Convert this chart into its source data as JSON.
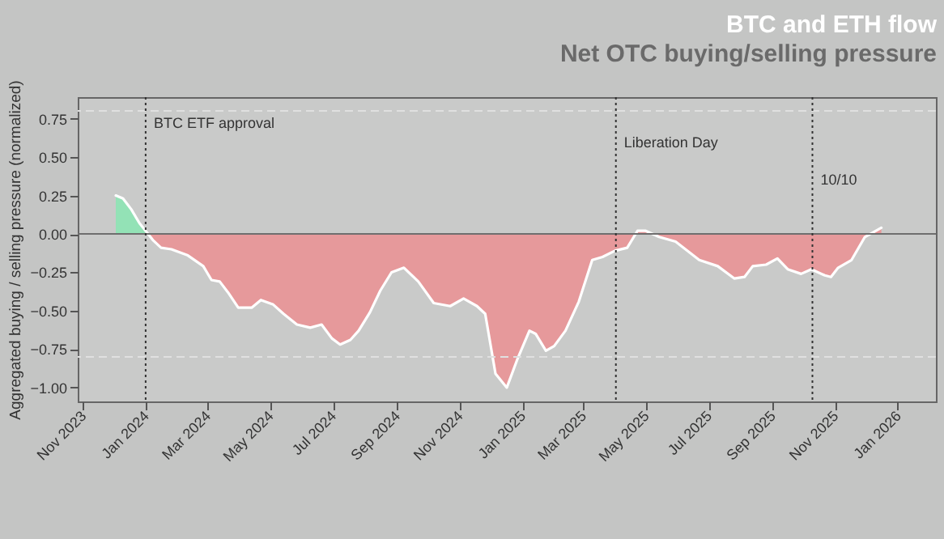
{
  "chart_data": {
    "type": "line",
    "title": "BTC and ETH flow",
    "subtitle": "Net OTC buying/selling pressure",
    "ylabel": "Aggregated buying / selling pressure (normalized)",
    "xlim": [
      "2023-10-27",
      "2026-02-07"
    ],
    "xticks": [
      {
        "value": "2023-11",
        "label": "Nov 2023"
      },
      {
        "value": "2024-01",
        "label": "Jan 2024"
      },
      {
        "value": "2024-03",
        "label": "Mar 2024"
      },
      {
        "value": "2024-05",
        "label": "May 2024"
      },
      {
        "value": "2024-07",
        "label": "Jul 2024"
      },
      {
        "value": "2024-09",
        "label": "Sep 2024"
      },
      {
        "value": "2024-11",
        "label": "Nov 2024"
      },
      {
        "value": "2025-01",
        "label": "Jan 2025"
      },
      {
        "value": "2025-03",
        "label": "Mar 2025"
      },
      {
        "value": "2025-05",
        "label": "May 2025"
      },
      {
        "value": "2025-07",
        "label": "Jul 2025"
      },
      {
        "value": "2025-09",
        "label": "Sep 2025"
      },
      {
        "value": "2025-11",
        "label": "Nov 2025"
      },
      {
        "value": "2026-01",
        "label": "Jan 2026"
      }
    ],
    "ylim": [
      -1.09,
      0.89
    ],
    "yticks": [
      {
        "value": 0.75,
        "label": "0.75"
      },
      {
        "value": 0.5,
        "label": "0.50"
      },
      {
        "value": 0.25,
        "label": "0.25"
      },
      {
        "value": 0,
        "label": "0.00"
      },
      {
        "value": -0.25,
        "label": "−0.25"
      },
      {
        "value": -0.5,
        "label": "−0.50"
      },
      {
        "value": -0.75,
        "label": "−0.75"
      },
      {
        "value": -1,
        "label": "−1.00"
      }
    ],
    "series": [
      {
        "type": "area",
        "color": "#93e2b6",
        "x": [
          "2023-12-03",
          "2023-12-10",
          "2023-12-18",
          "2023-12-26",
          "2024-01-01"
        ],
        "values": [
          0.25,
          0.23,
          0.16,
          0.07,
          0.02
        ]
      },
      {
        "type": "area",
        "color": "#e6999b",
        "x": [
          "2024-01-01",
          "2024-01-08",
          "2024-01-16",
          "2024-01-26",
          "2024-02-11",
          "2024-02-26",
          "2024-03-05",
          "2024-03-13",
          "2024-03-21",
          "2024-03-31",
          "2024-04-13",
          "2024-04-22",
          "2024-05-04",
          "2024-05-14",
          "2024-05-27",
          "2024-06-09",
          "2024-06-20",
          "2024-06-30",
          "2024-07-08",
          "2024-07-18",
          "2024-07-26",
          "2024-08-06",
          "2024-08-16",
          "2024-08-27",
          "2024-09-08",
          "2024-09-22",
          "2024-10-07",
          "2024-10-23",
          "2024-11-05",
          "2024-11-18",
          "2024-11-26",
          "2024-12-06",
          "2024-12-17",
          "2024-12-27",
          "2025-01-08",
          "2025-01-14",
          "2025-01-24",
          "2025-02-01",
          "2025-02-12",
          "2025-02-25",
          "2025-03-10",
          "2025-03-20",
          "2025-04-01",
          "2025-04-13",
          "2025-04-23",
          "2025-05-01",
          "2025-05-14",
          "2025-05-30",
          "2025-06-22",
          "2025-07-10",
          "2025-07-26",
          "2025-08-05",
          "2025-08-13",
          "2025-08-26",
          "2025-09-06",
          "2025-09-16",
          "2025-09-29",
          "2025-10-09",
          "2025-10-22",
          "2025-10-28",
          "2025-11-04",
          "2025-11-17",
          "2025-11-30",
          "2025-12-16"
        ],
        "values": [
          0.02,
          -0.04,
          -0.09,
          -0.1,
          -0.14,
          -0.21,
          -0.3,
          -0.31,
          -0.38,
          -0.48,
          -0.48,
          -0.43,
          -0.46,
          -0.52,
          -0.59,
          -0.61,
          -0.59,
          -0.68,
          -0.72,
          -0.69,
          -0.63,
          -0.51,
          -0.37,
          -0.25,
          -0.22,
          -0.31,
          -0.45,
          -0.47,
          -0.42,
          -0.47,
          -0.52,
          -0.91,
          -1.0,
          -0.82,
          -0.63,
          -0.65,
          -0.76,
          -0.73,
          -0.63,
          -0.44,
          -0.17,
          -0.15,
          -0.11,
          -0.09,
          0.02,
          0.02,
          -0.02,
          -0.05,
          -0.17,
          -0.21,
          -0.29,
          -0.28,
          -0.21,
          -0.2,
          -0.16,
          -0.23,
          -0.26,
          -0.23,
          -0.27,
          -0.28,
          -0.22,
          -0.17,
          -0.02,
          0.04
        ]
      },
      {
        "color": "#ffffff",
        "x": [
          "2023-12-03",
          "2023-12-10",
          "2023-12-18",
          "2023-12-26",
          "2024-01-01",
          "2024-01-08",
          "2024-01-16",
          "2024-01-26",
          "2024-02-11",
          "2024-02-26",
          "2024-03-05",
          "2024-03-13",
          "2024-03-21",
          "2024-03-31",
          "2024-04-13",
          "2024-04-22",
          "2024-05-04",
          "2024-05-14",
          "2024-05-27",
          "2024-06-09",
          "2024-06-20",
          "2024-06-30",
          "2024-07-08",
          "2024-07-18",
          "2024-07-26",
          "2024-08-06",
          "2024-08-16",
          "2024-08-27",
          "2024-09-08",
          "2024-09-22",
          "2024-10-07",
          "2024-10-23",
          "2024-11-05",
          "2024-11-18",
          "2024-11-26",
          "2024-12-06",
          "2024-12-17",
          "2024-12-27",
          "2025-01-08",
          "2025-01-14",
          "2025-01-24",
          "2025-02-01",
          "2025-02-12",
          "2025-02-25",
          "2025-03-10",
          "2025-03-20",
          "2025-04-01",
          "2025-04-13",
          "2025-04-23",
          "2025-05-01",
          "2025-05-14",
          "2025-05-30",
          "2025-06-22",
          "2025-07-10",
          "2025-07-26",
          "2025-08-05",
          "2025-08-13",
          "2025-08-26",
          "2025-09-06",
          "2025-09-16",
          "2025-09-29",
          "2025-10-09",
          "2025-10-22",
          "2025-10-28",
          "2025-11-04",
          "2025-11-17",
          "2025-11-30",
          "2025-12-16"
        ],
        "values": [
          0.25,
          0.23,
          0.16,
          0.07,
          0.02,
          -0.04,
          -0.09,
          -0.1,
          -0.14,
          -0.21,
          -0.3,
          -0.31,
          -0.38,
          -0.48,
          -0.48,
          -0.43,
          -0.46,
          -0.52,
          -0.59,
          -0.61,
          -0.59,
          -0.68,
          -0.72,
          -0.69,
          -0.63,
          -0.51,
          -0.37,
          -0.25,
          -0.22,
          -0.31,
          -0.45,
          -0.47,
          -0.42,
          -0.47,
          -0.52,
          -0.91,
          -1.0,
          -0.82,
          -0.63,
          -0.65,
          -0.76,
          -0.73,
          -0.63,
          -0.44,
          -0.17,
          -0.15,
          -0.11,
          -0.09,
          0.02,
          0.02,
          -0.02,
          -0.05,
          -0.17,
          -0.21,
          -0.29,
          -0.28,
          -0.21,
          -0.2,
          -0.16,
          -0.23,
          -0.26,
          -0.23,
          -0.27,
          -0.28,
          -0.22,
          -0.17,
          -0.02,
          0.04
        ]
      }
    ],
    "ref_lines": [
      {
        "axis": "y",
        "value": 0,
        "color": "#6e6e6e",
        "line_style": "solid"
      },
      {
        "axis": "y",
        "value": 0.8,
        "color": "#e0e0e0",
        "line_style": "dashed"
      },
      {
        "axis": "y",
        "value": -0.8,
        "color": "#e0e0e0",
        "line_style": "dashed"
      },
      {
        "axis": "x",
        "value": "2024-01-01",
        "label": "BTC ETF approval",
        "color": "#333333",
        "line_style": "dotted"
      },
      {
        "axis": "x",
        "value": "2025-04-02",
        "label": "Liberation Day",
        "color": "#333333",
        "line_style": "dotted"
      },
      {
        "axis": "x",
        "value": "2025-10-10",
        "label": "10/10",
        "color": "#333333",
        "line_style": "dotted"
      }
    ],
    "grid": false
  }
}
